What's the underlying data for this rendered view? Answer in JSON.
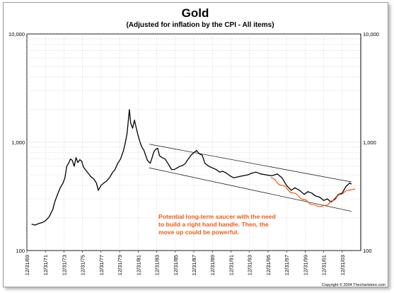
{
  "chart_data": {
    "type": "line",
    "title": "Gold",
    "subtitle": "(Adjusted for inflation by the CPI - All items)",
    "xlabel": "",
    "ylabel": "",
    "y_scale": "log",
    "ylim": [
      100,
      10000
    ],
    "y_ticks": [
      100,
      1000,
      10000
    ],
    "y_tick_labels": [
      "100",
      "1,000",
      "10,000"
    ],
    "xlim": [
      1969.0,
      2005.0
    ],
    "x_tick_labels": [
      "12/31/69",
      "12/31/71",
      "12/31/73",
      "12/31/75",
      "12/31/77",
      "12/31/79",
      "12/31/81",
      "12/31/83",
      "12/31/85",
      "12/31/87",
      "12/31/89",
      "12/31/91",
      "12/31/93",
      "12/31/95",
      "12/31/97",
      "12/31/99",
      "12/31/01",
      "12/31/03"
    ],
    "x_tick_values": [
      1969,
      1971,
      1973,
      1975,
      1977,
      1979,
      1981,
      1983,
      1985,
      1987,
      1989,
      1991,
      1993,
      1995,
      1997,
      1999,
      2001,
      2003
    ],
    "grid": true,
    "legend": "none",
    "line_color": "#000000",
    "series": [
      {
        "x": [
          1969.5,
          1969.9,
          1970.3,
          1970.7,
          1971.0,
          1971.4,
          1971.8,
          1972.0,
          1972.3,
          1972.6,
          1972.9,
          1973.1,
          1973.3,
          1973.5,
          1973.7,
          1973.9,
          1974.1,
          1974.3,
          1974.5,
          1974.7,
          1974.9,
          1975.1,
          1975.3,
          1975.6,
          1975.9,
          1976.2,
          1976.5,
          1976.7,
          1977.0,
          1977.3,
          1977.6,
          1977.9,
          1978.2,
          1978.5,
          1978.8,
          1979.1,
          1979.4,
          1979.6,
          1979.8,
          1980.0,
          1980.05,
          1980.2,
          1980.4,
          1980.6,
          1980.8,
          1981.0,
          1981.2,
          1981.4,
          1981.6,
          1981.8,
          1982.0,
          1982.3,
          1982.5,
          1982.7,
          1982.9,
          1983.1,
          1983.3,
          1983.6,
          1983.9,
          1984.2,
          1984.6,
          1984.9,
          1985.2,
          1985.5,
          1985.8,
          1986.1,
          1986.4,
          1986.7,
          1987.0,
          1987.3,
          1987.6,
          1987.9,
          1988.2,
          1988.6,
          1989.0,
          1989.4,
          1989.8,
          1990.1,
          1990.5,
          1990.9,
          1991.3,
          1991.8,
          1992.3,
          1992.8,
          1993.3,
          1993.7,
          1994.2,
          1994.8,
          1995.4,
          1996.0,
          1996.5,
          1997.0,
          1997.5,
          1997.9,
          1998.4,
          1998.9,
          1999.3,
          1999.7,
          2000.1,
          2000.6,
          2001.0,
          2001.4,
          2001.8,
          2002.2,
          2002.6,
          2003.0,
          2003.4,
          2003.8,
          2004.0
        ],
        "y": [
          175,
          172,
          178,
          182,
          188,
          205,
          240,
          280,
          330,
          380,
          420,
          470,
          600,
          640,
          700,
          680,
          600,
          720,
          650,
          690,
          670,
          590,
          560,
          520,
          480,
          460,
          420,
          360,
          400,
          420,
          440,
          470,
          520,
          560,
          640,
          700,
          830,
          980,
          1200,
          1800,
          2000,
          1500,
          1350,
          1600,
          1350,
          1150,
          1000,
          900,
          850,
          760,
          680,
          640,
          720,
          820,
          860,
          880,
          750,
          720,
          700,
          640,
          560,
          560,
          580,
          600,
          610,
          640,
          700,
          760,
          800,
          840,
          780,
          760,
          640,
          600,
          580,
          560,
          530,
          540,
          520,
          490,
          470,
          480,
          490,
          500,
          520,
          530,
          510,
          500,
          490,
          510,
          470,
          400,
          360,
          380,
          360,
          330,
          350,
          340,
          320,
          310,
          290,
          300,
          280,
          300,
          330,
          340,
          390,
          420,
          410
        ]
      }
    ],
    "channel": {
      "upper": {
        "x": [
          1982.2,
          2004.0
        ],
        "y": [
          960,
          430
        ]
      },
      "lower": {
        "x": [
          1982.2,
          2004.0
        ],
        "y": [
          580,
          230
        ]
      }
    },
    "saucer": {
      "x": [
        1995.3,
        1996.5,
        1997.7,
        1998.9,
        1999.8,
        2000.6,
        2001.3,
        2002.0,
        2002.8,
        2003.6,
        2004.4
      ],
      "y": [
        470,
        400,
        340,
        295,
        265,
        255,
        262,
        290,
        330,
        360,
        370
      ]
    },
    "annotation": {
      "lines": [
        "Potential long-term saucer with the need",
        "to build a right hand handle.  Then, the",
        "move up could be powerful."
      ],
      "color": "#f05a14"
    },
    "copyright": "Copyright © 2004 Thechartstore.com"
  }
}
